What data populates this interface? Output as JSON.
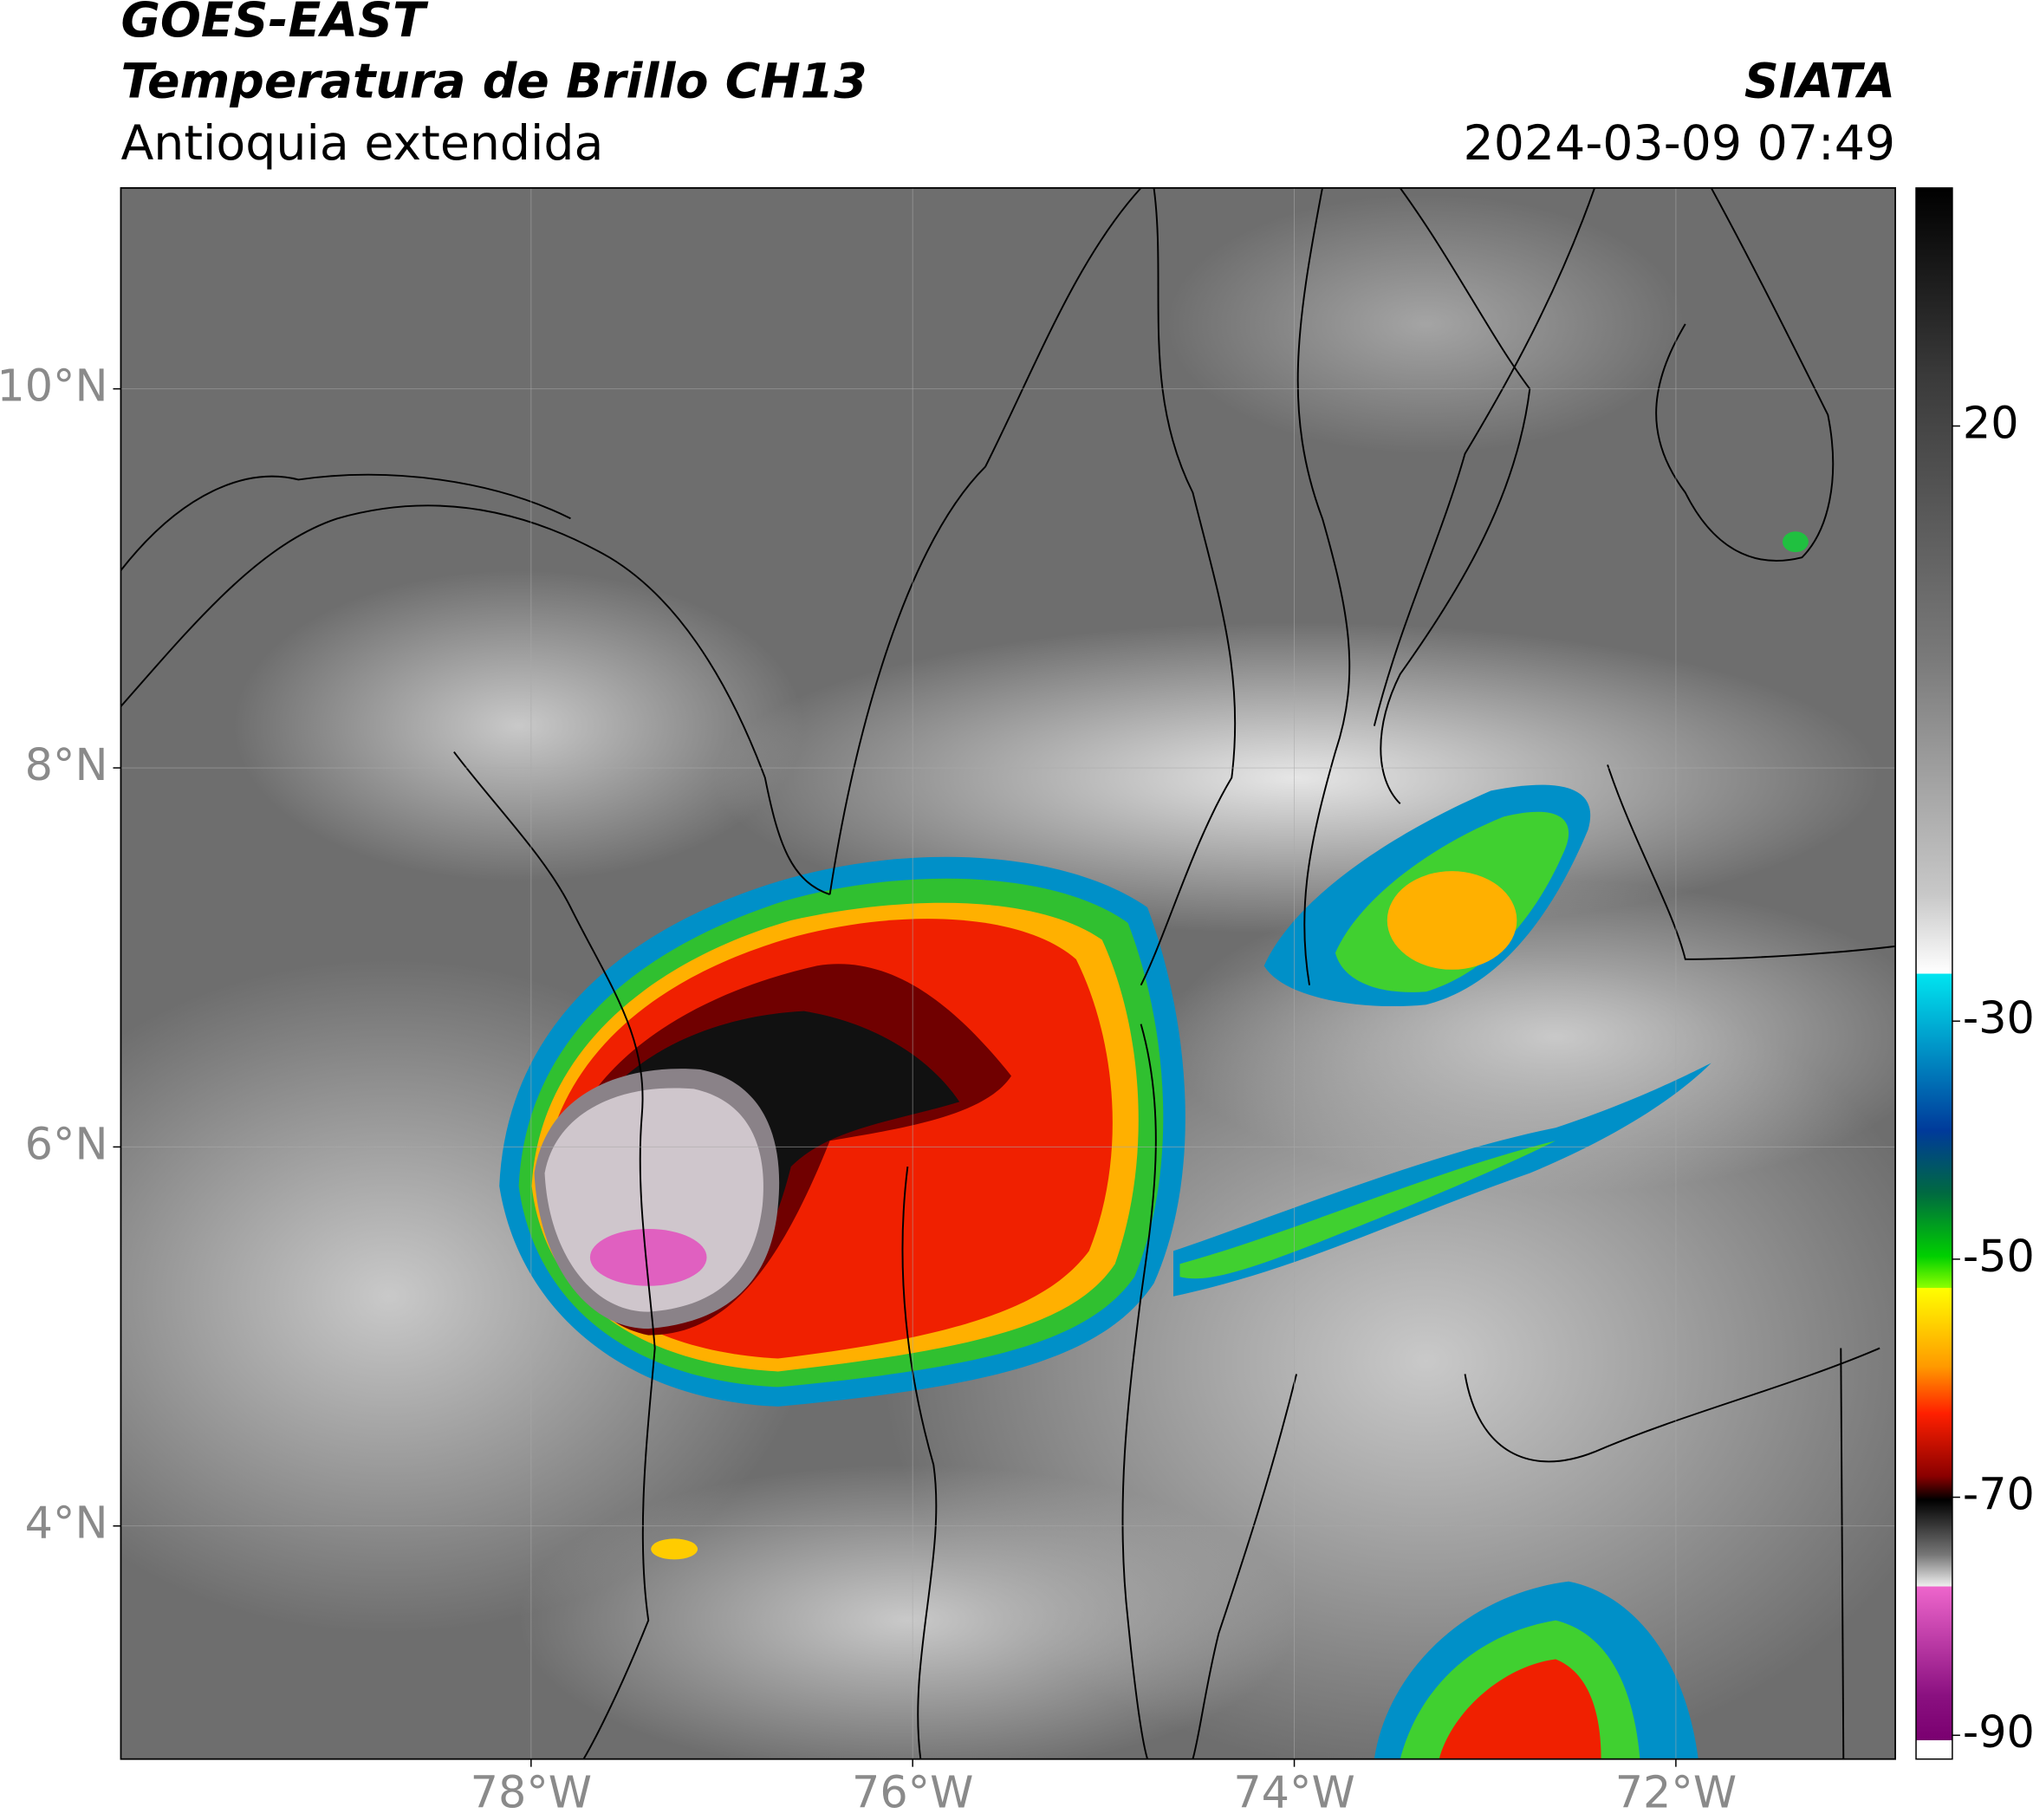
{
  "header": {
    "satellite": "GOES-EAST",
    "product": "Temperatura de Brillo CH13",
    "region": "Antioquia extendida",
    "source": "SIATA",
    "datetime": "2024-03-09 07:49"
  },
  "map": {
    "xlim": [
      -80.15,
      -70.85
    ],
    "ylim": [
      2.77,
      11.06
    ],
    "xticks": [
      {
        "value": -78,
        "label": "78°W"
      },
      {
        "value": -76,
        "label": "76°W"
      },
      {
        "value": -74,
        "label": "74°W"
      },
      {
        "value": -72,
        "label": "72°W"
      }
    ],
    "yticks": [
      {
        "value": 4,
        "label": "4°N"
      },
      {
        "value": 6,
        "label": "6°N"
      },
      {
        "value": 8,
        "label": "8°N"
      },
      {
        "value": 10,
        "label": "10°N"
      }
    ],
    "grid": true
  },
  "colorbar": {
    "lim": [
      -92,
      40
    ],
    "ticks": [
      20,
      -30,
      -50,
      -70,
      -90
    ]
  }
}
